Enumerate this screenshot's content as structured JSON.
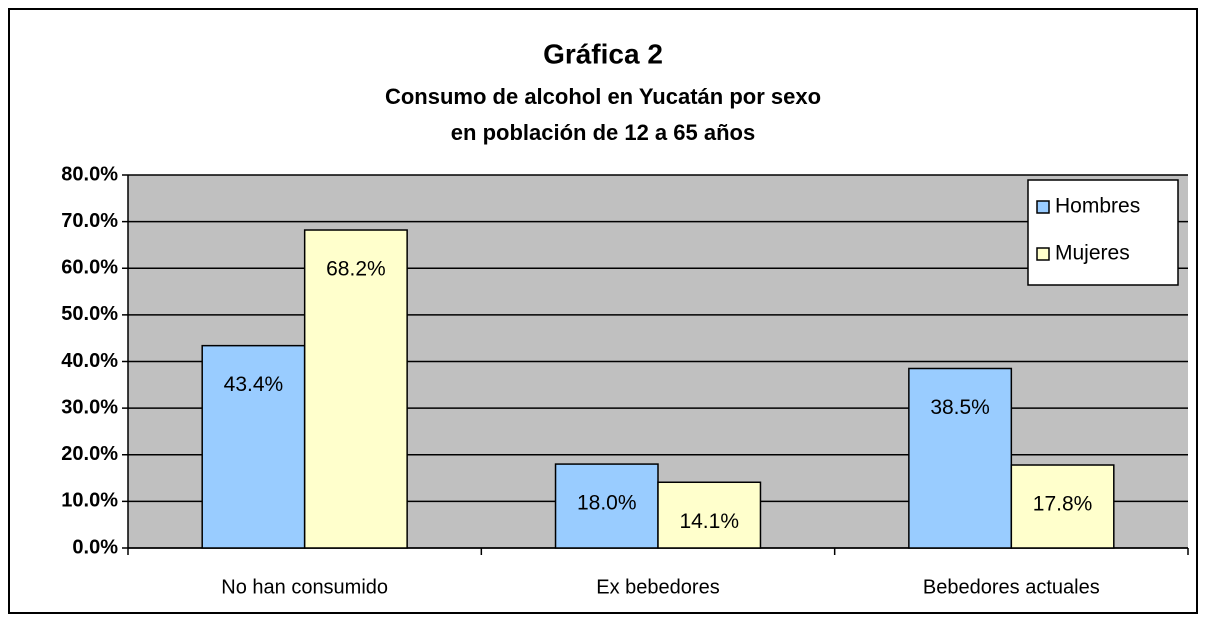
{
  "chart_data": {
    "type": "bar",
    "title": "Gráfica 2",
    "subtitle": [
      "Consumo de alcohol en Yucatán por sexo",
      "en población de 12 a 65 años"
    ],
    "categories": [
      "No han consumido",
      "Ex bebedores",
      "Bebedores actuales"
    ],
    "series": [
      {
        "name": "Hombres",
        "color": "#99ccff",
        "values": [
          43.4,
          18.0,
          38.5
        ],
        "value_labels": [
          "43.4%",
          "18.0%",
          "38.5%"
        ]
      },
      {
        "name": "Mujeres",
        "color": "#ffffcc",
        "values": [
          68.2,
          14.1,
          17.8
        ],
        "value_labels": [
          "68.2%",
          "14.1%",
          "17.8%"
        ]
      }
    ],
    "ylim": [
      0,
      80
    ],
    "yticks": [
      {
        "value": 0,
        "label": "0.0%"
      },
      {
        "value": 10,
        "label": "10.0%"
      },
      {
        "value": 20,
        "label": "20.0%"
      },
      {
        "value": 30,
        "label": "30.0%"
      },
      {
        "value": 40,
        "label": "40.0%"
      },
      {
        "value": 50,
        "label": "50.0%"
      },
      {
        "value": 60,
        "label": "60.0%"
      },
      {
        "value": 70,
        "label": "70.0%"
      },
      {
        "value": 80,
        "label": "80.0%"
      }
    ],
    "grid": true,
    "legend": "top-right"
  }
}
